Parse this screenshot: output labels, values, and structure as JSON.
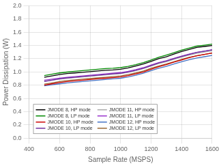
{
  "chart_data": {
    "type": "line",
    "xlabel": "Sample Rate (MSPS)",
    "ylabel": "Power Dissipation (W)",
    "xlim": [
      400,
      1600
    ],
    "ylim": [
      0,
      2
    ],
    "xticks": [
      400,
      600,
      800,
      1000,
      1200,
      1400,
      1600
    ],
    "yticks": [
      {
        "value": 0,
        "label": "0.0"
      },
      0.2,
      0.4,
      0.6,
      0.8,
      {
        "value": 1.0,
        "label": "1.0"
      },
      1.2,
      1.4,
      1.6,
      1.8,
      {
        "value": 2.0,
        "label": "2.0"
      }
    ],
    "x": [
      500,
      550,
      600,
      650,
      700,
      750,
      800,
      850,
      900,
      950,
      1000,
      1050,
      1100,
      1150,
      1200,
      1250,
      1300,
      1350,
      1400,
      1450,
      1500,
      1550,
      1600
    ],
    "series": [
      {
        "name": "JMODE 8, HP mode",
        "color": "#000000",
        "values": [
          0.92,
          0.94,
          0.96,
          0.975,
          0.985,
          0.995,
          1.005,
          1.015,
          1.025,
          1.03,
          1.04,
          1.06,
          1.09,
          1.12,
          1.16,
          1.2,
          1.23,
          1.27,
          1.31,
          1.34,
          1.37,
          1.385,
          1.4
        ]
      },
      {
        "name": "JMODE 8, LP mode",
        "color": "#008800",
        "values": [
          0.945,
          0.965,
          0.985,
          0.998,
          1.01,
          1.02,
          1.03,
          1.04,
          1.05,
          1.055,
          1.065,
          1.085,
          1.11,
          1.14,
          1.18,
          1.22,
          1.255,
          1.29,
          1.33,
          1.36,
          1.39,
          1.405,
          1.42
        ]
      },
      {
        "name": "JMODE 10, HP mode",
        "color": "#cc0000",
        "values": [
          0.8,
          0.82,
          0.84,
          0.855,
          0.865,
          0.875,
          0.885,
          0.895,
          0.905,
          0.915,
          0.925,
          0.945,
          0.97,
          1.0,
          1.04,
          1.08,
          1.11,
          1.15,
          1.18,
          1.215,
          1.245,
          1.265,
          1.285
        ]
      },
      {
        "name": "JMODE 10, LP mode",
        "color": "#7030a0",
        "values": [
          0.855,
          0.875,
          0.895,
          0.91,
          0.92,
          0.93,
          0.94,
          0.95,
          0.96,
          0.97,
          0.98,
          1.0,
          1.025,
          1.055,
          1.095,
          1.135,
          1.165,
          1.2,
          1.235,
          1.265,
          1.295,
          1.315,
          1.335
        ]
      },
      {
        "name": "JMODE 11, HP mode",
        "color": "#aaaaaa",
        "values": [
          0.86,
          0.875,
          0.89,
          0.905,
          0.915,
          0.925,
          0.935,
          0.945,
          0.955,
          0.965,
          0.975,
          0.995,
          1.02,
          1.05,
          1.09,
          1.125,
          1.155,
          1.19,
          1.225,
          1.255,
          1.28,
          1.3,
          1.32
        ]
      },
      {
        "name": "JMODE 11, LP mode",
        "color": "#9933cc",
        "values": [
          0.875,
          0.89,
          0.905,
          0.92,
          0.93,
          0.94,
          0.95,
          0.96,
          0.97,
          0.98,
          0.99,
          1.01,
          1.035,
          1.065,
          1.105,
          1.14,
          1.17,
          1.205,
          1.24,
          1.27,
          1.295,
          1.315,
          1.335
        ]
      },
      {
        "name": "JMODE 12, HP mode",
        "color": "#4472c4",
        "values": [
          0.79,
          0.805,
          0.82,
          0.835,
          0.845,
          0.855,
          0.865,
          0.875,
          0.885,
          0.895,
          0.905,
          0.925,
          0.95,
          0.98,
          1.02,
          1.055,
          1.085,
          1.12,
          1.155,
          1.185,
          1.21,
          1.23,
          1.25
        ]
      },
      {
        "name": "JMODE 12, LP mode",
        "color": "#996633",
        "values": [
          0.815,
          0.835,
          0.855,
          0.87,
          0.88,
          0.89,
          0.9,
          0.91,
          0.92,
          0.93,
          0.94,
          0.96,
          0.985,
          1.015,
          1.055,
          1.09,
          1.12,
          1.155,
          1.19,
          1.22,
          1.245,
          1.265,
          1.285
        ]
      }
    ],
    "grid": true,
    "legend": "lower left"
  }
}
